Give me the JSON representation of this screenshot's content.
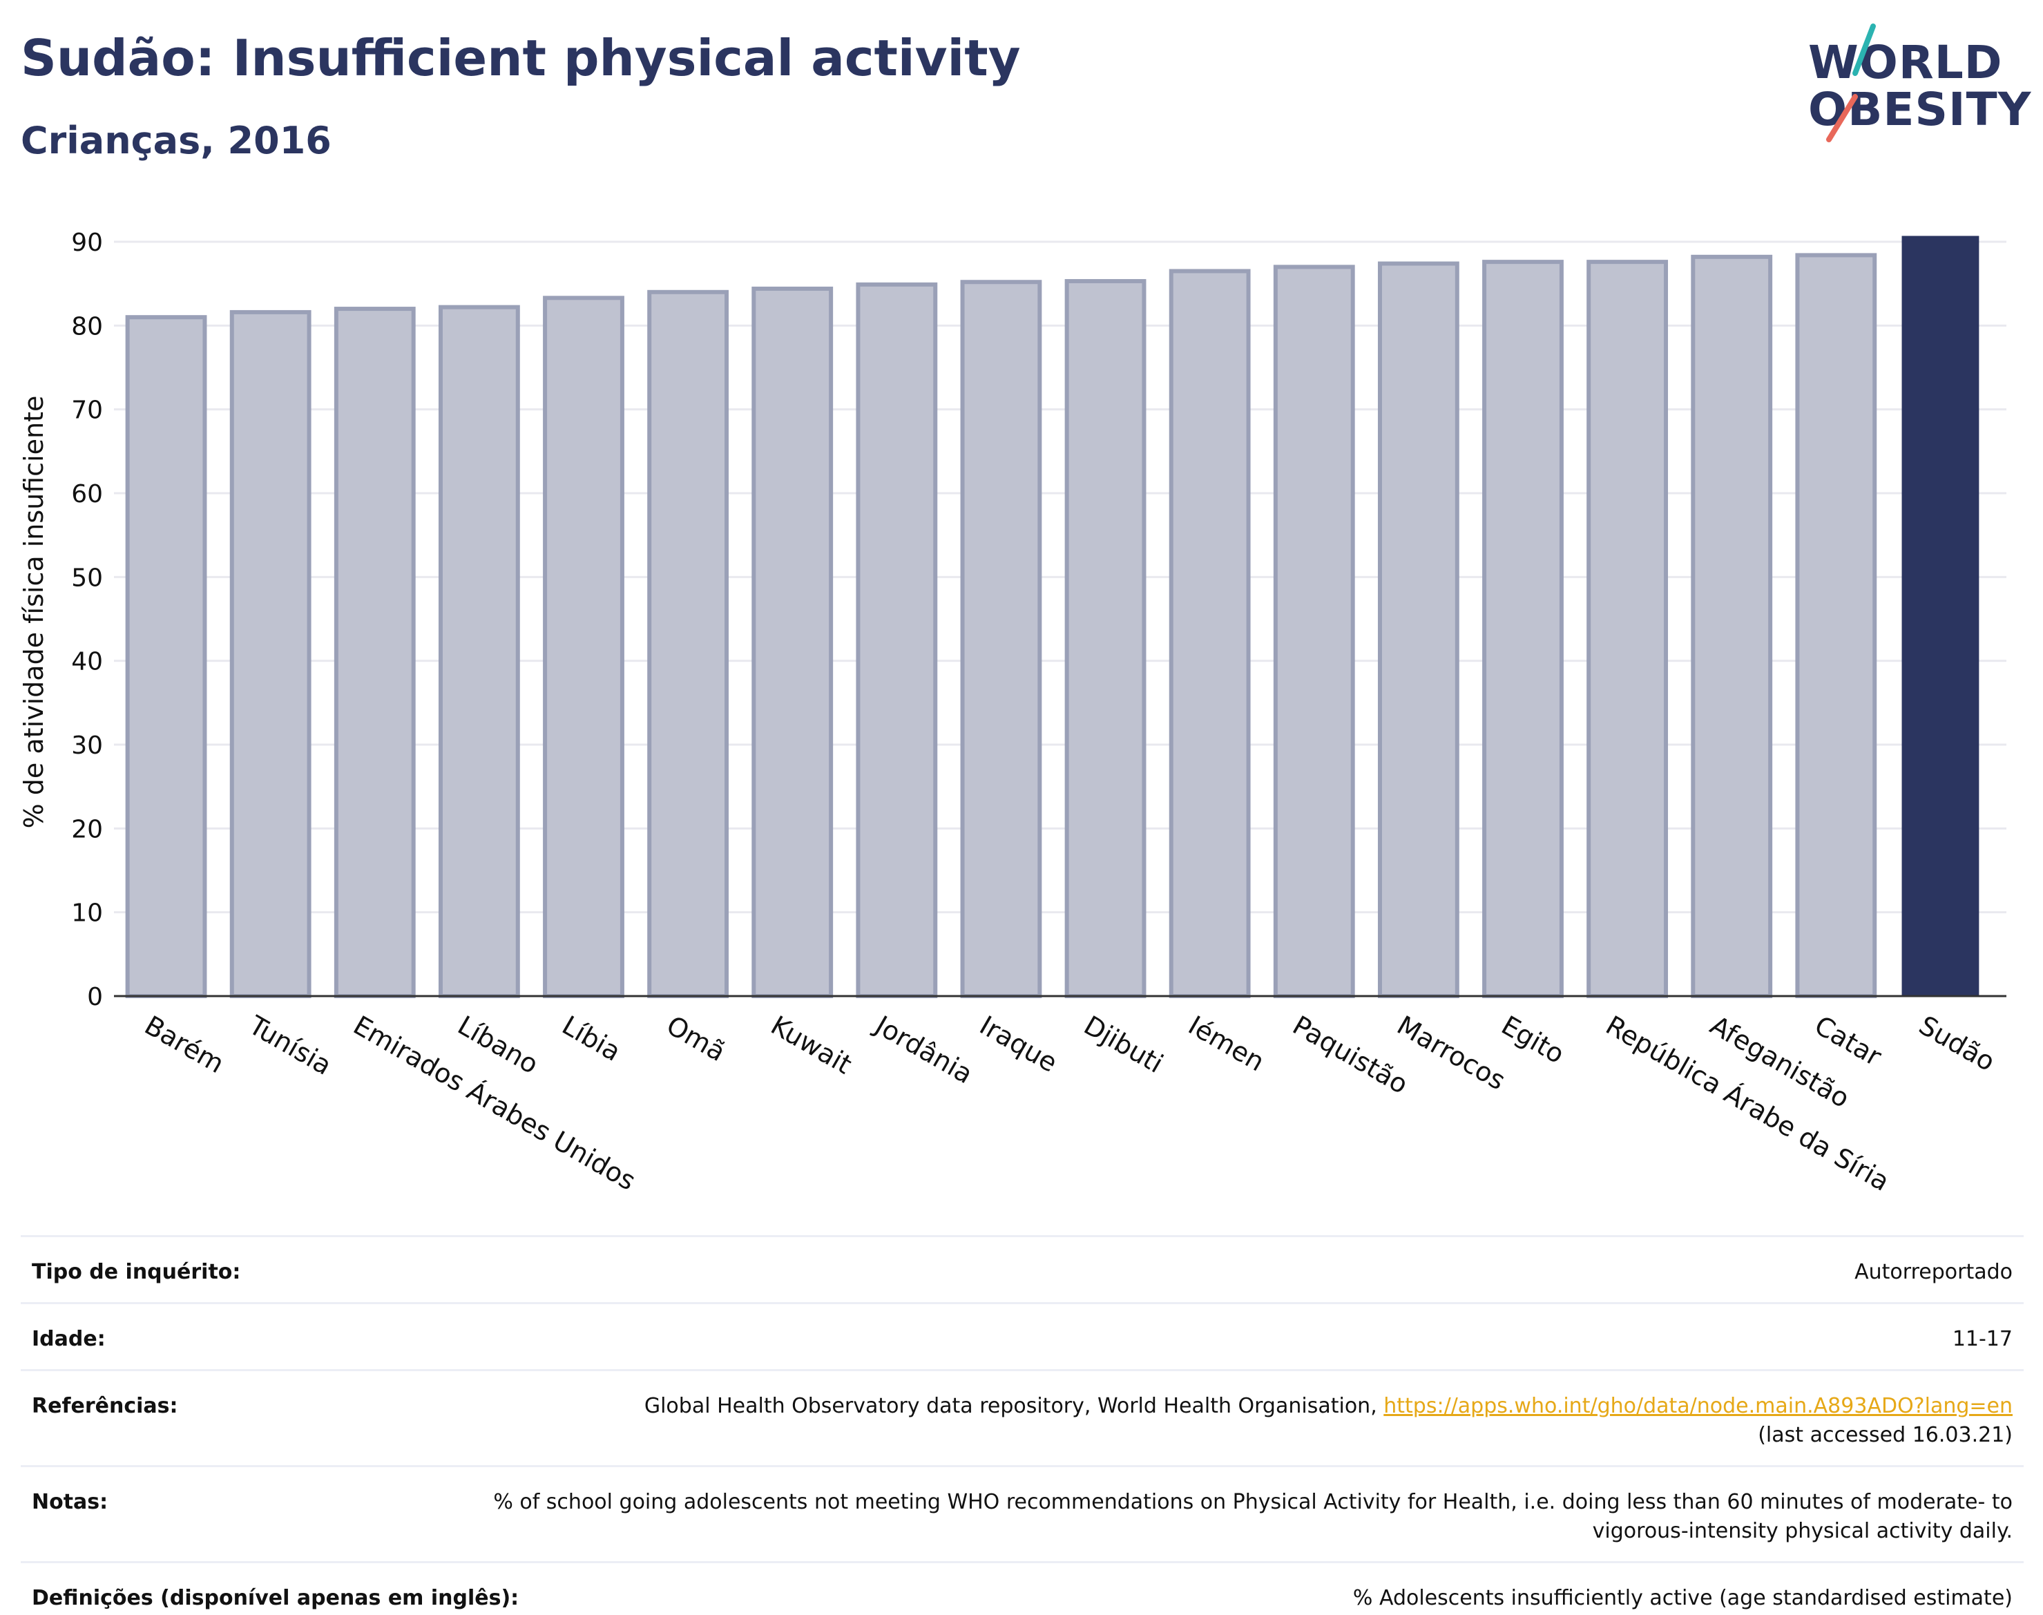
{
  "header": {
    "title": "Sudão: Insufficient physical activity",
    "subtitle": "Crianças, 2016"
  },
  "logo": {
    "line1": "WORLD",
    "line2": "OBESITY",
    "colors": {
      "text": "#2b3560",
      "slash_top": "#2bb3b1",
      "slash_bottom": "#e8685a"
    }
  },
  "chart_data": {
    "type": "bar",
    "title": "",
    "xlabel": "",
    "ylabel": "% de atividade física insuficiente",
    "ylim": [
      0,
      90
    ],
    "yticks": [
      0,
      10,
      20,
      30,
      40,
      50,
      60,
      70,
      80,
      90
    ],
    "grid": true,
    "categories": [
      "Barém",
      "Tunísia",
      "Emirados Árabes Unidos",
      "Líbano",
      "Líbia",
      "Omã",
      "Kuwait",
      "Jordânia",
      "Iraque",
      "Djibuti",
      "Iémen",
      "Paquistão",
      "Marrocos",
      "Egito",
      "República Árabe da Síria",
      "Afeganistão",
      "Catar",
      "Sudão"
    ],
    "values": [
      81.0,
      81.6,
      82.0,
      82.2,
      83.3,
      84.0,
      84.4,
      84.9,
      85.2,
      85.3,
      86.5,
      87.0,
      87.4,
      87.6,
      87.6,
      88.2,
      88.4,
      90.7
    ],
    "highlight": "Sudão",
    "colors": {
      "bar": "#bfc2d0",
      "bar_edge": "#9aa0b7",
      "highlight": "#2b3560",
      "grid": "#e9e9ef",
      "axis": "#333333"
    }
  },
  "meta": {
    "rows": [
      {
        "label": "Tipo de inquérito:",
        "value": "Autorreportado"
      },
      {
        "label": "Idade:",
        "value": "11-17"
      },
      {
        "label": "Referências:",
        "value_prefix": "Global Health Observatory data repository, World Health Organisation, ",
        "link": "https://apps.who.int/gho/data/node.main.A893ADO?lang=en",
        "value_suffix": "(last accessed 16.03.21)"
      },
      {
        "label": "Notas:",
        "value": "% of school going adolescents not meeting WHO recommendations on Physical Activity for Health, i.e. doing less than 60 minutes of moderate- to vigorous-intensity physical activity daily."
      },
      {
        "label": "Definições (disponível apenas em inglês):",
        "value": "% Adolescents insufficiently active (age standardised estimate)"
      }
    ]
  }
}
